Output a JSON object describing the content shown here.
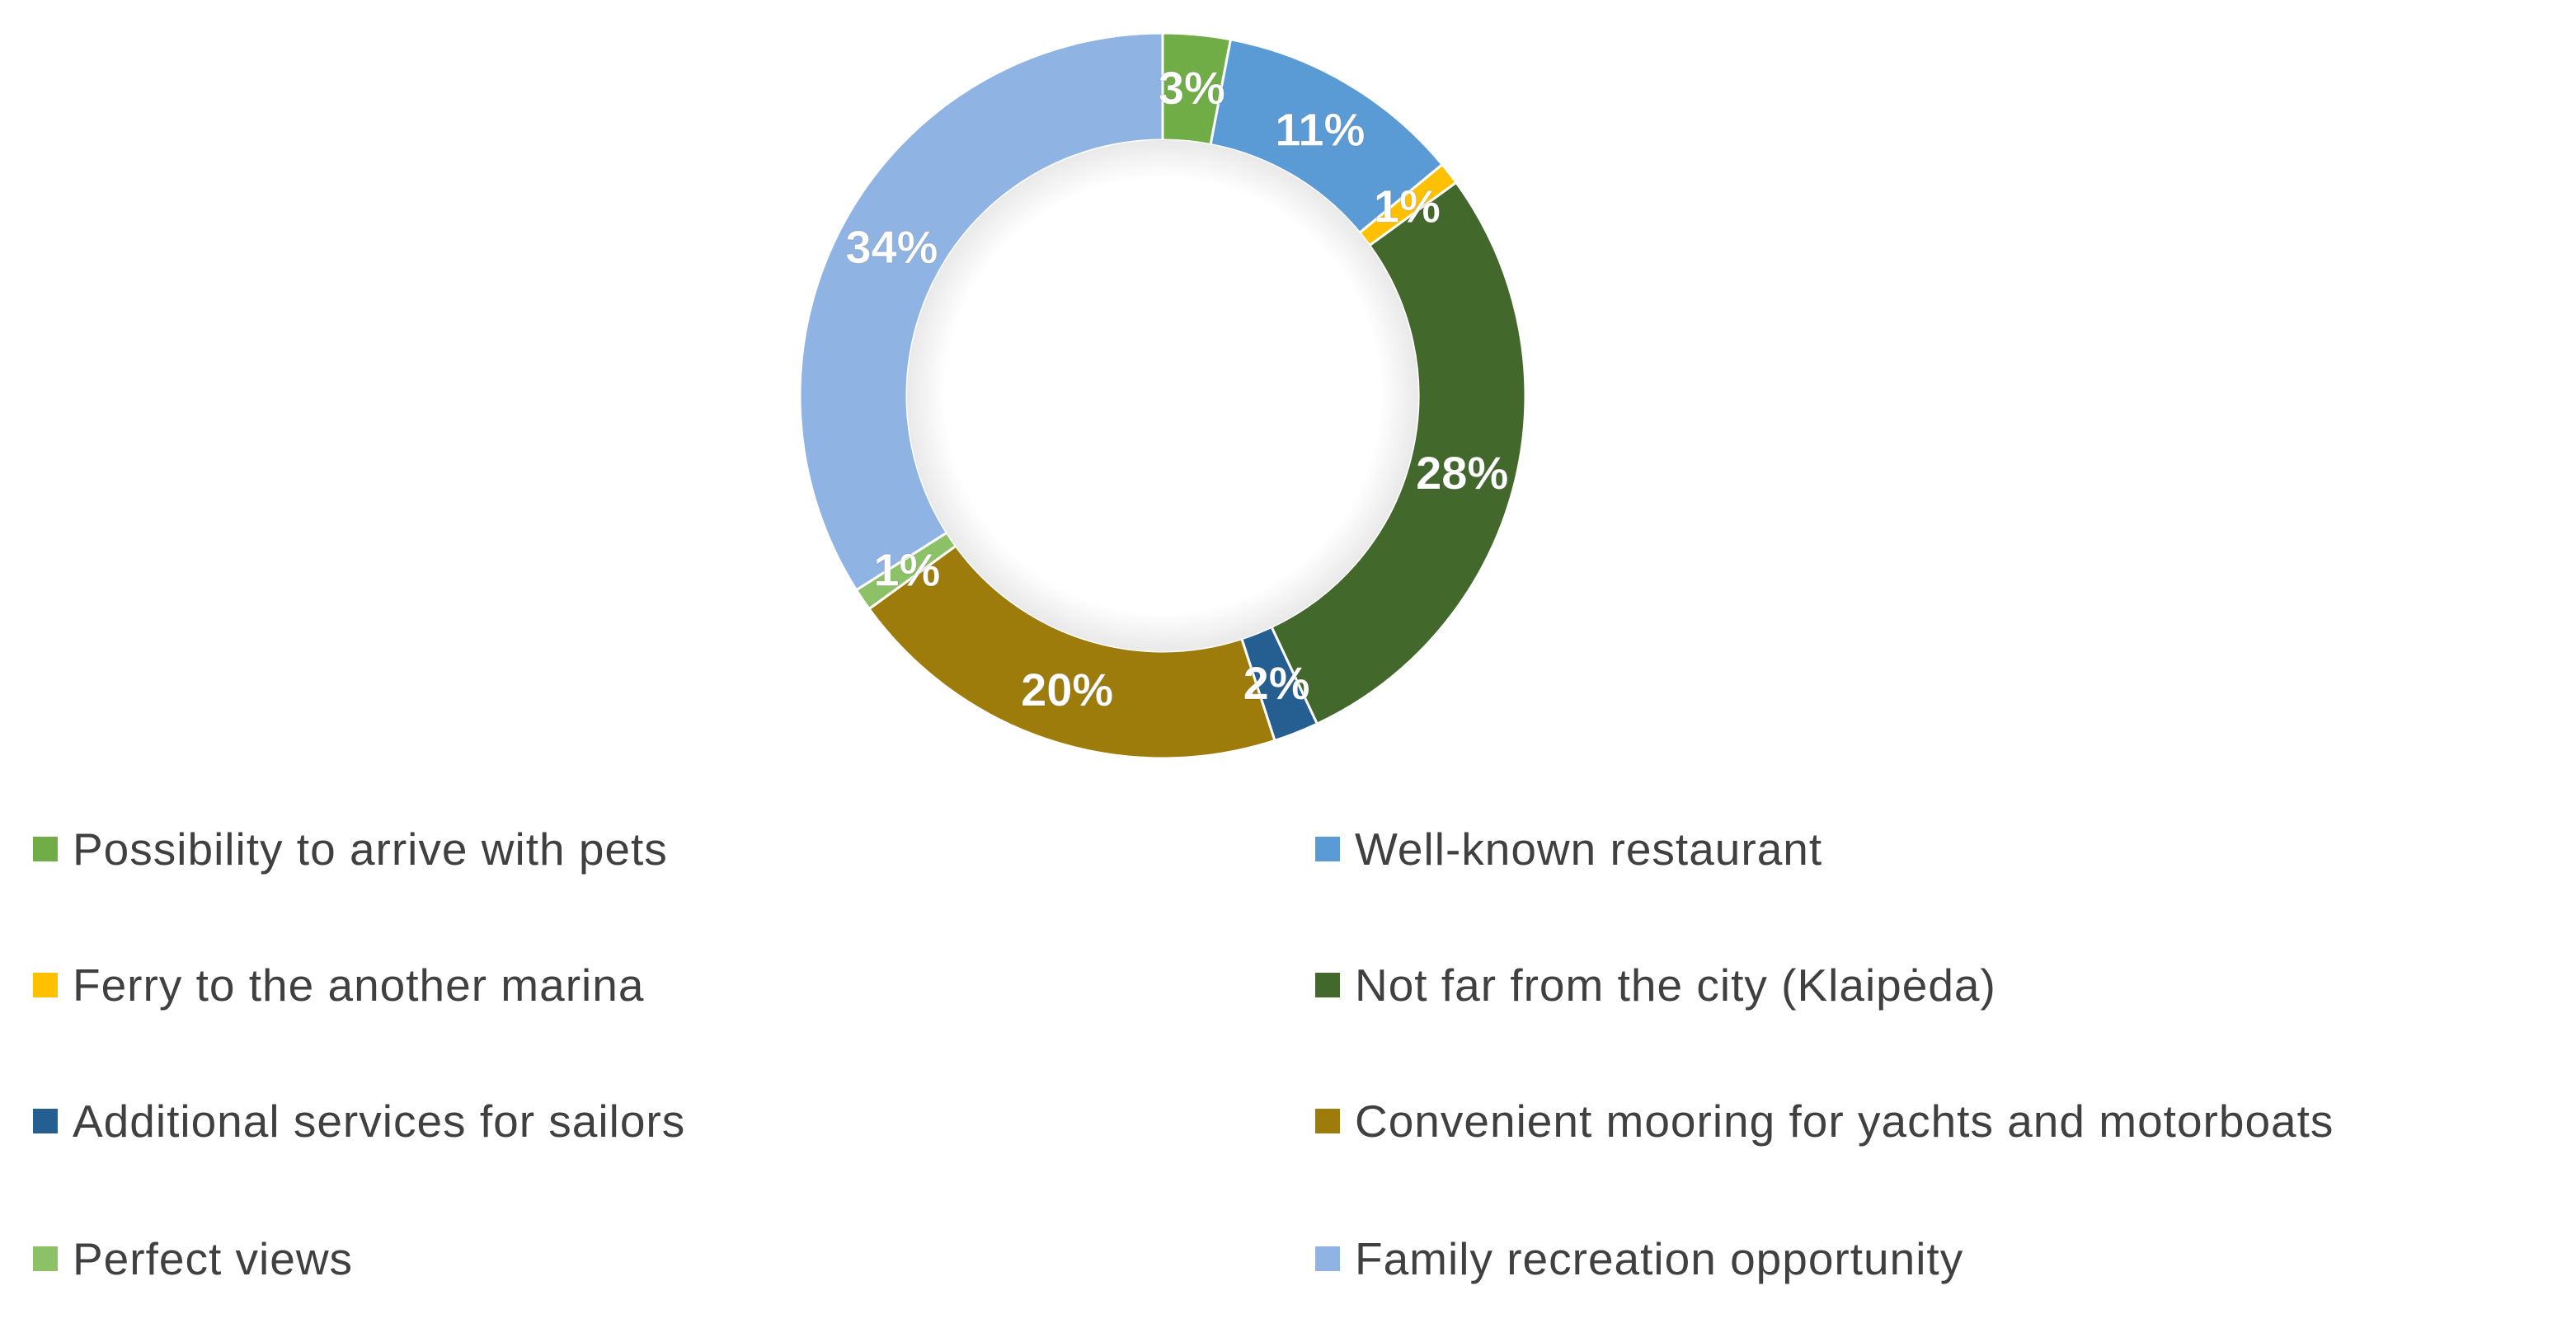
{
  "chart_data": {
    "type": "pie",
    "donut": true,
    "title": "",
    "legend_position": "bottom",
    "slices": [
      {
        "name": "Possibility to arrive with pets",
        "value": 3,
        "label": "3%",
        "color": "#70AD47"
      },
      {
        "name": "Well-known restaurant",
        "value": 11,
        "label": "11%",
        "color": "#5B9BD5"
      },
      {
        "name": "Ferry to the another marina",
        "value": 1,
        "label": "1%",
        "color": "#FFC000"
      },
      {
        "name": "Not far from the city (Klaipėda)",
        "value": 28,
        "label": "28%",
        "color": "#43682B"
      },
      {
        "name": "Additional services for sailors",
        "value": 2,
        "label": "2%",
        "color": "#255E91"
      },
      {
        "name": "Convenient mooring for yachts and motorboats",
        "value": 20,
        "label": "20%",
        "color": "#9E7C0B"
      },
      {
        "name": "Perfect views",
        "value": 1,
        "label": "1%",
        "color": "#8CC168"
      },
      {
        "name": "Family recreation opportunity",
        "value": 34,
        "label": "34%",
        "color": "#8FB4E3"
      }
    ]
  }
}
